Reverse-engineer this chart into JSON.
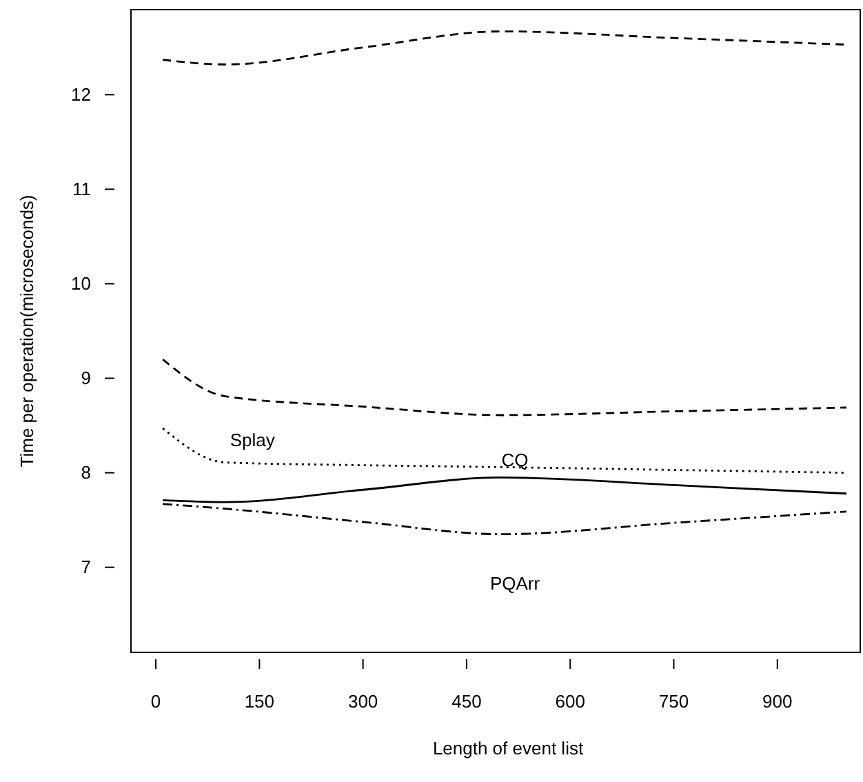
{
  "chart_data": {
    "type": "line",
    "xlabel": "Length of event list",
    "ylabel": "Time per operation(microseconds)",
    "x": [
      10,
      100,
      300,
      500,
      750,
      1000
    ],
    "xlim": [
      -36,
      1020
    ],
    "xticks": [
      0,
      150,
      300,
      450,
      600,
      750,
      900
    ],
    "ylim": [
      6.1,
      12.9
    ],
    "yticks": [
      7,
      8,
      9,
      10,
      11,
      12
    ],
    "series": [
      {
        "color": "#000000",
        "line_style": "dashed",
        "values": [
          12.37,
          12.32,
          12.5,
          12.67,
          12.6,
          12.53
        ]
      },
      {
        "color": "#000000",
        "line_style": "dashed",
        "values": [
          9.2,
          8.81,
          8.7,
          8.61,
          8.65,
          8.69
        ]
      },
      {
        "name": "Splay",
        "color": "#000000",
        "line_style": "dotted",
        "values": [
          8.47,
          8.11,
          8.08,
          8.06,
          8.03,
          8.0
        ]
      },
      {
        "name": "CQ",
        "color": "#000000",
        "line_style": "solid",
        "values": [
          7.71,
          7.69,
          7.82,
          7.95,
          7.87,
          7.78
        ]
      },
      {
        "name": "PQArr",
        "color": "#000000",
        "line_style": "dashdot",
        "values": [
          7.67,
          7.62,
          7.48,
          7.35,
          7.47,
          7.59
        ]
      }
    ],
    "grid": false,
    "legend": false
  }
}
